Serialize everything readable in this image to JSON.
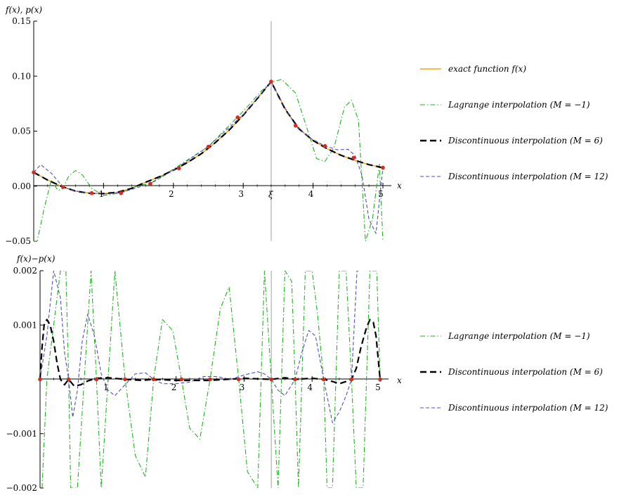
{
  "colors": {
    "exact": "#f7a21b",
    "lagrange": "#22b022",
    "disc6": "#000000",
    "disc12": "#4f4fbf",
    "node": "#d42d1f",
    "xi_line": "#a0a0a0"
  },
  "chart_data": [
    {
      "type": "line",
      "ylabel": "f(x), p(x)",
      "xlabel": "x",
      "xlim": [
        0,
        5.0
      ],
      "ylim": [
        -0.05,
        0.15
      ],
      "xticks": [
        1,
        2,
        3,
        4,
        5
      ],
      "yticks": [
        "-0.05",
        "0.00",
        "0.05",
        "0.10",
        "0.15"
      ],
      "xi_label": "ξ",
      "xi_position": 3.4,
      "legend": [
        {
          "label": "exact function f(x)",
          "style": "solid",
          "color": "exact"
        },
        {
          "label": "Lagrange interpolation (M = −1)",
          "style": "dashdot",
          "color": "lagrange"
        },
        {
          "label": "Discontinuous interpolation (M = 6)",
          "style": "longdash",
          "color": "disc6"
        },
        {
          "label": "Discontinuous interpolation (M = 12)",
          "style": "shortdash",
          "color": "disc12"
        }
      ],
      "nodes": {
        "x": [
          0.0,
          0.42,
          0.83,
          1.25,
          1.67,
          2.08,
          2.5,
          2.92,
          3.4,
          3.75,
          4.17,
          4.58,
          5.0
        ],
        "y": [
          0.0125,
          -0.0008,
          -0.0063,
          -0.0063,
          0.0022,
          0.0162,
          0.0358,
          0.0625,
          0.095,
          0.055,
          0.0365,
          0.0258,
          0.0168
        ]
      },
      "series": [
        {
          "key": "exact",
          "x": [
            0,
            0.2,
            0.4,
            0.6,
            0.8,
            1.0,
            1.2,
            1.4,
            1.6,
            1.8,
            2.0,
            2.2,
            2.4,
            2.6,
            2.8,
            3.0,
            3.2,
            3.4,
            3.6,
            3.8,
            4.0,
            4.2,
            4.4,
            4.6,
            4.8,
            5.0
          ],
          "y": [
            0.0125,
            0.0055,
            -0.0003,
            -0.0045,
            -0.0065,
            -0.0068,
            -0.0055,
            -0.002,
            0.0035,
            0.0085,
            0.0145,
            0.0215,
            0.0295,
            0.0395,
            0.051,
            0.0645,
            0.0795,
            0.095,
            0.07,
            0.052,
            0.0415,
            0.034,
            0.028,
            0.0235,
            0.0195,
            0.0168
          ]
        },
        {
          "key": "lagrange",
          "x": [
            0,
            0.05,
            0.15,
            0.25,
            0.35,
            0.42,
            0.5,
            0.6,
            0.7,
            0.83,
            1.0,
            1.25,
            1.5,
            1.67,
            2.0,
            2.5,
            2.92,
            3.1,
            3.25,
            3.4,
            3.55,
            3.75,
            3.9,
            4.05,
            4.17,
            4.3,
            4.45,
            4.55,
            4.65,
            4.75,
            4.85,
            4.95,
            5.0
          ],
          "y": [
            -0.05,
            -0.05,
            -0.02,
            0.005,
            -0.004,
            -0.002,
            0.009,
            0.0142,
            0.01,
            -0.002,
            -0.0085,
            -0.006,
            0.0005,
            0.0025,
            0.0155,
            0.036,
            0.0628,
            0.075,
            0.086,
            0.0945,
            0.097,
            0.0845,
            0.055,
            0.025,
            0.0225,
            0.035,
            0.072,
            0.078,
            0.06,
            -0.05,
            -0.03,
            0.02,
            -0.05
          ]
        },
        {
          "key": "disc6",
          "x": [
            0,
            0.2,
            0.4,
            0.6,
            0.8,
            1.0,
            1.2,
            1.4,
            1.6,
            1.8,
            2.0,
            2.2,
            2.4,
            2.6,
            2.8,
            3.0,
            3.2,
            3.4,
            3.6,
            3.8,
            4.0,
            4.2,
            4.4,
            4.6,
            4.8,
            5.0
          ],
          "y": [
            0.0125,
            0.0055,
            -0.0003,
            -0.0045,
            -0.0065,
            -0.0068,
            -0.0055,
            -0.002,
            0.0035,
            0.0085,
            0.0145,
            0.0215,
            0.0295,
            0.0395,
            0.051,
            0.0645,
            0.0795,
            0.095,
            0.07,
            0.052,
            0.0415,
            0.034,
            0.028,
            0.0235,
            0.0195,
            0.0168
          ]
        },
        {
          "key": "disc12",
          "x": [
            0,
            0.1,
            0.25,
            0.42,
            0.6,
            0.83,
            1.0,
            1.25,
            1.5,
            1.67,
            2.0,
            2.5,
            3.0,
            3.4,
            3.6,
            3.75,
            3.95,
            4.17,
            4.35,
            4.5,
            4.6,
            4.7,
            4.8,
            4.9,
            5.0
          ],
          "y": [
            0.0125,
            0.0195,
            0.012,
            -0.0008,
            -0.0045,
            -0.0063,
            -0.0072,
            -0.006,
            -0.001,
            0.0022,
            0.0145,
            0.036,
            0.065,
            0.095,
            0.071,
            0.055,
            0.044,
            0.0365,
            0.033,
            0.0335,
            0.028,
            0.01,
            -0.03,
            -0.043,
            0.0168
          ]
        }
      ]
    },
    {
      "type": "line",
      "ylabel": "f(x)−p(x)",
      "xlabel": "x",
      "xlim": [
        0,
        5.0
      ],
      "ylim": [
        -0.002,
        0.002
      ],
      "xticks": [
        1,
        2,
        3,
        4,
        5
      ],
      "yticks": [
        "-0.002",
        "-0.001",
        "0.001",
        "0.002"
      ],
      "xi_position": 3.4,
      "legend": [
        {
          "label": "Lagrange interpolation (M = −1)",
          "style": "dashdot",
          "color": "lagrange"
        },
        {
          "label": "Discontinuous interpolation (M = 6)",
          "style": "longdash",
          "color": "disc6"
        },
        {
          "label": "Discontinuous interpolation (M = 12)",
          "style": "shortdash",
          "color": "disc12"
        }
      ],
      "nodes": {
        "x": [
          0.0,
          0.42,
          0.83,
          1.25,
          1.67,
          2.08,
          2.5,
          2.92,
          3.4,
          3.75,
          4.17,
          4.58,
          5.0
        ],
        "y": [
          0,
          0,
          0,
          0,
          0,
          0,
          0,
          0,
          0,
          0,
          0,
          0,
          0
        ]
      },
      "series": [
        {
          "key": "lagrange",
          "x": [
            0.03,
            0.1,
            0.2,
            0.3,
            0.38,
            0.42,
            0.45,
            0.55,
            0.65,
            0.75,
            0.83,
            0.9,
            1.0,
            1.1,
            1.25,
            1.4,
            1.55,
            1.67,
            1.8,
            1.95,
            2.08,
            2.2,
            2.35,
            2.5,
            2.65,
            2.78,
            2.92,
            3.05,
            3.2,
            3.3,
            3.4,
            3.5,
            3.6,
            3.7,
            3.75,
            3.8,
            3.9,
            4.0,
            4.08,
            4.17,
            4.22,
            4.3,
            4.4,
            4.5,
            4.58,
            4.65,
            4.75,
            4.85,
            4.95,
            5.0
          ],
          "y": [
            -0.002,
            0.0,
            0.001,
            0.002,
            0.002,
            0.0,
            -0.002,
            -0.002,
            0.0,
            0.002,
            0.0,
            -0.002,
            0.0,
            0.002,
            0.0,
            -0.0014,
            -0.0018,
            0.0,
            0.0011,
            0.0009,
            0.0,
            -0.0009,
            -0.0011,
            0.0,
            0.0013,
            0.0017,
            0.0,
            -0.0017,
            -0.002,
            0.002,
            0.0,
            -0.002,
            0.002,
            0.0018,
            0.0,
            -0.002,
            0.002,
            0.002,
            0.0012,
            0.0,
            -0.002,
            -0.002,
            0.002,
            0.002,
            0.0,
            -0.002,
            -0.002,
            0.002,
            0.002,
            0.0
          ]
        },
        {
          "key": "disc6",
          "x": [
            0.0,
            0.03,
            0.06,
            0.1,
            0.15,
            0.2,
            0.25,
            0.3,
            0.36,
            0.42,
            0.5,
            0.6,
            0.7,
            0.83,
            1.0,
            1.25,
            1.5,
            1.67,
            2.0,
            2.5,
            3.0,
            3.4,
            3.6,
            3.75,
            4.0,
            4.17,
            4.3,
            4.4,
            4.5,
            4.58,
            4.65,
            4.72,
            4.8,
            4.85,
            4.9,
            4.94,
            4.97,
            5.0
          ],
          "y": [
            0,
            0.0006,
            0.001,
            0.0011,
            0.001,
            0.0007,
            0.0003,
            0.0,
            -0.0001,
            0.0,
            -0.00012,
            -0.0001,
            -3e-05,
            2e-05,
            3e-05,
            0.0,
            -2e-05,
            0.0,
            -2e-05,
            -2e-05,
            2e-05,
            0.0,
            3e-05,
            0.0,
            2e-05,
            0.0,
            -4e-05,
            -8e-05,
            -4e-05,
            0.0,
            0.0002,
            0.0006,
            0.00095,
            0.0011,
            0.00105,
            0.0008,
            0.0004,
            0.0
          ]
        },
        {
          "key": "disc12",
          "x": [
            0.0,
            0.1,
            0.2,
            0.3,
            0.36,
            0.42,
            0.48,
            0.55,
            0.62,
            0.7,
            0.8,
            0.9,
            1.0,
            1.1,
            1.25,
            1.4,
            1.55,
            1.67,
            1.8,
            2.0,
            2.2,
            2.4,
            2.6,
            2.8,
            3.0,
            3.2,
            3.3,
            3.4,
            3.5,
            3.6,
            3.75,
            3.85,
            3.95,
            4.05,
            4.17,
            4.3,
            4.4,
            4.5,
            4.58,
            4.62,
            4.66,
            4.7
          ],
          "y": [
            0,
            0.0008,
            0.002,
            0.0015,
            0.0005,
            0.0,
            -0.0007,
            -0.0002,
            0.0007,
            0.0012,
            0.0008,
            0.0001,
            -0.0002,
            -0.0003,
            -0.0001,
            0.0001,
            0.00012,
            0.0,
            -8e-05,
            -8e-05,
            -5e-05,
            5e-05,
            5e-05,
            0.0,
            8e-05,
            0.00014,
            0.0001,
            0.0,
            -0.0002,
            -0.0003,
            0.0,
            0.0005,
            0.0009,
            0.0008,
            0.0,
            -0.0008,
            -0.0006,
            -0.0003,
            0.0,
            0.001,
            0.002,
            0.002
          ]
        }
      ]
    }
  ]
}
